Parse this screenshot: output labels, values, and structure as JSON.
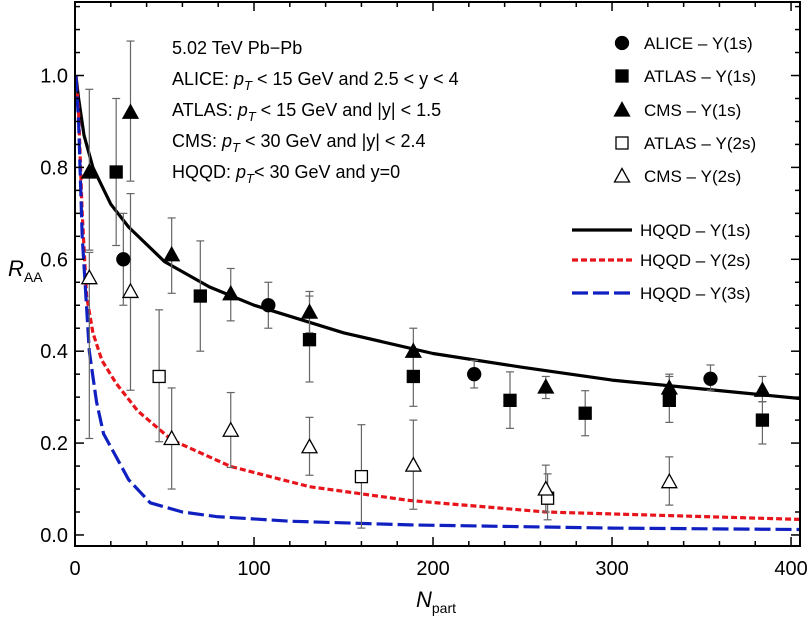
{
  "chart_data": {
    "type": "scatter",
    "xlabel": "N",
    "xlabel_sub": "part",
    "ylabel": "R",
    "ylabel_sub": "AA",
    "xlim": [
      0,
      405
    ],
    "ylim": [
      -0.024,
      1.16
    ],
    "xticks": [
      0,
      100,
      200,
      300,
      400
    ],
    "yticks": [
      "0.0",
      "0.2",
      "0.4",
      "0.6",
      "0.8",
      "1.0"
    ],
    "grid": false,
    "legend_placement": "top-right",
    "annotations": [
      {
        "parts": [
          {
            "t": "5.02 TeV Pb−Pb"
          }
        ]
      },
      {
        "parts": [
          {
            "t": "ALICE: "
          },
          {
            "t": "p",
            "i": true
          },
          {
            "t": "T",
            "sub": true
          },
          {
            "t": " < 15 GeV and 2.5 < y < 4"
          }
        ]
      },
      {
        "parts": [
          {
            "t": "ATLAS: "
          },
          {
            "t": "p",
            "i": true
          },
          {
            "t": "T",
            "sub": true
          },
          {
            "t": " < 15 GeV and |y| < 1.5"
          }
        ]
      },
      {
        "parts": [
          {
            "t": "CMS: "
          },
          {
            "t": "p",
            "i": true
          },
          {
            "t": "T",
            "sub": true
          },
          {
            "t": " < 30 GeV and |y| < 2.4"
          }
        ]
      },
      {
        "parts": [
          {
            "t": "HQQD:  "
          },
          {
            "t": "p",
            "i": true
          },
          {
            "t": "T",
            "sub": true
          },
          {
            "t": "< 30 GeV and y=0"
          }
        ]
      }
    ],
    "point_series": [
      {
        "name": "ALICE – Υ(1s)",
        "marker": "circle",
        "filled": true,
        "points": [
          [
            27,
            0.6,
            0.5,
            0.7
          ],
          [
            108,
            0.5,
            0.45,
            0.55
          ],
          [
            223,
            0.35,
            0.32,
            0.38
          ],
          [
            355,
            0.34,
            0.315,
            0.37
          ]
        ]
      },
      {
        "name": "ATLAS – Υ(1s)",
        "marker": "square",
        "filled": true,
        "points": [
          [
            23,
            0.79,
            0.63,
            0.95
          ],
          [
            70,
            0.52,
            0.4,
            0.64
          ],
          [
            131,
            0.425,
            0.333,
            0.52
          ],
          [
            189,
            0.345,
            0.28,
            0.4
          ],
          [
            243,
            0.293,
            0.232,
            0.355
          ],
          [
            285,
            0.265,
            0.216,
            0.314
          ],
          [
            332,
            0.293,
            0.245,
            0.345
          ],
          [
            384,
            0.25,
            0.198,
            0.29
          ]
        ]
      },
      {
        "name": "CMS – Υ(1s)",
        "marker": "triangle",
        "filled": true,
        "points": [
          [
            8,
            0.79,
            0.62,
            0.97
          ],
          [
            31,
            0.92,
            0.77,
            1.075
          ],
          [
            54,
            0.61,
            0.526,
            0.69
          ],
          [
            87,
            0.525,
            0.466,
            0.58
          ],
          [
            131,
            0.485,
            0.44,
            0.53
          ],
          [
            189,
            0.4,
            0.35,
            0.45
          ],
          [
            263,
            0.322,
            0.297,
            0.345
          ],
          [
            332,
            0.32,
            0.29,
            0.35
          ],
          [
            384,
            0.315,
            0.29,
            0.345
          ]
        ]
      },
      {
        "name": "ATLAS – Υ(2s)",
        "marker": "square",
        "filled": false,
        "points": [
          [
            47,
            0.345,
            0.203,
            0.49
          ],
          [
            160,
            0.127,
            0.015,
            0.24
          ],
          [
            264,
            0.08,
            0.033,
            0.133
          ]
        ]
      },
      {
        "name": "CMS – Υ(2s)",
        "marker": "triangle",
        "filled": false,
        "points": [
          [
            8,
            0.56,
            0.21,
            0.615
          ],
          [
            31,
            0.53,
            0.315,
            0.743
          ],
          [
            54,
            0.21,
            0.1,
            0.32
          ],
          [
            87,
            0.228,
            0.147,
            0.31
          ],
          [
            131,
            0.192,
            0.13,
            0.256
          ],
          [
            189,
            0.152,
            0.056,
            0.25
          ],
          [
            263,
            0.1,
            0.05,
            0.152
          ],
          [
            332,
            0.116,
            0.065,
            0.17
          ]
        ]
      }
    ],
    "point_fields": [
      "Npart",
      "RAA",
      "err_low",
      "err_high"
    ],
    "line_series": [
      {
        "name": "HQQD – Υ(1s)",
        "color": "#000000",
        "style": "solid",
        "x": [
          0.5,
          2,
          5,
          10,
          20,
          30,
          50,
          75,
          100,
          150,
          200,
          250,
          300,
          350,
          405
        ],
        "y": [
          1.0,
          0.95,
          0.87,
          0.8,
          0.72,
          0.67,
          0.595,
          0.54,
          0.5,
          0.44,
          0.395,
          0.365,
          0.337,
          0.318,
          0.297
        ]
      },
      {
        "name": "HQQD – Υ(2s)",
        "color": "#e8141b",
        "style": "short-dash",
        "x": [
          0.5,
          2,
          4,
          6.5,
          10,
          15,
          23,
          35,
          54,
          87,
          131,
          187,
          263,
          405
        ],
        "y": [
          1.0,
          0.92,
          0.7,
          0.52,
          0.44,
          0.38,
          0.33,
          0.27,
          0.207,
          0.149,
          0.105,
          0.075,
          0.05,
          0.034
        ]
      },
      {
        "name": "HQQD – Υ(3s)",
        "color": "#1020c0",
        "style": "long-dash",
        "x": [
          0.5,
          2,
          4,
          8,
          12,
          16,
          23,
          30,
          42,
          60,
          79,
          120,
          187,
          300,
          405
        ],
        "y": [
          1.0,
          0.9,
          0.65,
          0.4,
          0.29,
          0.22,
          0.17,
          0.12,
          0.07,
          0.05,
          0.04,
          0.03,
          0.022,
          0.015,
          0.012
        ]
      }
    ]
  }
}
